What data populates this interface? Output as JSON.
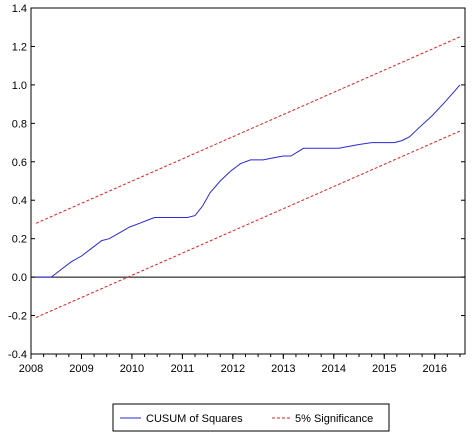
{
  "chart_data": {
    "type": "line",
    "title": "",
    "xlabel": "",
    "ylabel": "",
    "xlim": [
      2008,
      2016.6
    ],
    "ylim": [
      -0.4,
      1.4
    ],
    "x_ticks": [
      "2008",
      "2009",
      "2010",
      "2011",
      "2012",
      "2013",
      "2014",
      "2015",
      "2016"
    ],
    "y_ticks": [
      "-0.4",
      "-0.2",
      "0.0",
      "0.2",
      "0.4",
      "0.6",
      "0.8",
      "1.0",
      "1.2",
      "1.4"
    ],
    "zero_line": 0.0,
    "legend_position": "bottom",
    "series": [
      {
        "name": "CUSUM of Squares",
        "color": "#2a2ad6",
        "style": "solid",
        "x": [
          2008.1,
          2008.4,
          2008.6,
          2008.8,
          2009.0,
          2009.2,
          2009.4,
          2009.55,
          2009.75,
          2009.95,
          2010.15,
          2010.35,
          2010.45,
          2010.7,
          2010.9,
          2011.1,
          2011.25,
          2011.4,
          2011.55,
          2011.75,
          2011.95,
          2012.15,
          2012.35,
          2012.6,
          2012.8,
          2013.0,
          2013.15,
          2013.4,
          2013.6,
          2013.85,
          2014.1,
          2014.3,
          2014.5,
          2014.75,
          2015.0,
          2015.2,
          2015.35,
          2015.5,
          2015.7,
          2015.95,
          2016.2,
          2016.5
        ],
        "y": [
          0.0,
          0.0,
          0.04,
          0.08,
          0.11,
          0.15,
          0.19,
          0.2,
          0.23,
          0.26,
          0.28,
          0.3,
          0.31,
          0.31,
          0.31,
          0.31,
          0.32,
          0.37,
          0.44,
          0.5,
          0.55,
          0.59,
          0.61,
          0.61,
          0.62,
          0.63,
          0.63,
          0.67,
          0.67,
          0.67,
          0.67,
          0.68,
          0.69,
          0.7,
          0.7,
          0.7,
          0.71,
          0.73,
          0.78,
          0.84,
          0.91,
          1.0
        ]
      },
      {
        "name": "5% Significance",
        "color": "#e0201e",
        "style": "dashed",
        "x": [
          2008.1,
          2016.5
        ],
        "y": [
          0.28,
          1.25
        ]
      },
      {
        "name": "",
        "color": "#e0201e",
        "style": "dashed",
        "x": [
          2008.1,
          2016.5
        ],
        "y": [
          -0.21,
          0.76
        ]
      }
    ]
  }
}
